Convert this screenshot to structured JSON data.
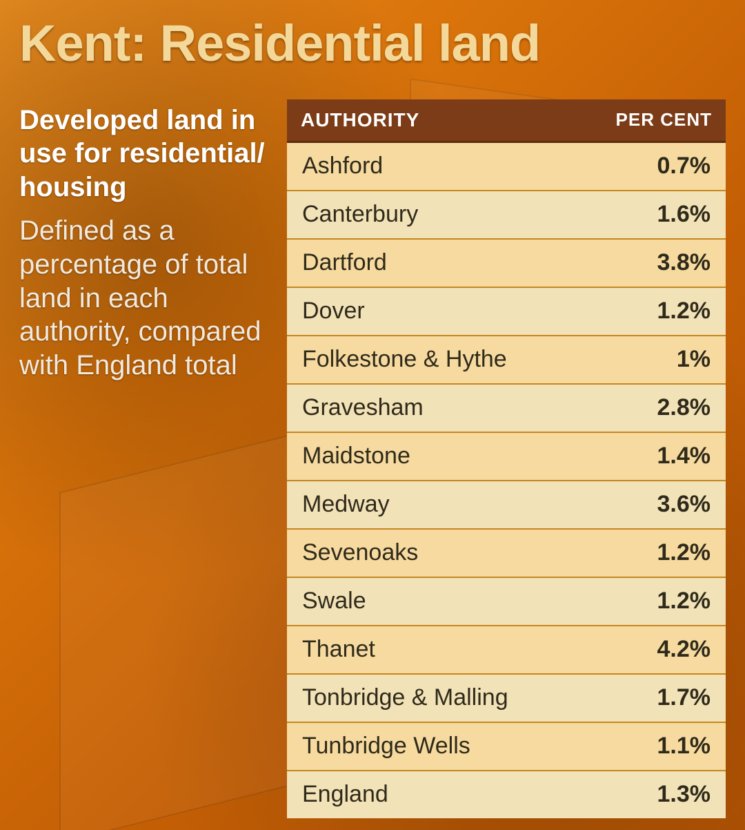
{
  "title_color": "#f4d89a",
  "title": "Kent: Residential land",
  "intro": {
    "lead": "Developed land in use for residential/ housing",
    "sub": "Defined as a percentage of total land in each authority, compared with England total"
  },
  "table": {
    "header_bg": "#7b3c17",
    "header_border": "#5e2c10",
    "row_bg_odd": "#f6daa0",
    "row_bg_even": "#f2e2b8",
    "row_border": "#c6861f",
    "text_color": "#2f2a1a",
    "columns": {
      "authority": "AUTHORITY",
      "percent": "PER CENT"
    },
    "rows": [
      {
        "authority": "Ashford",
        "percent": "0.7%"
      },
      {
        "authority": "Canterbury",
        "percent": "1.6%"
      },
      {
        "authority": "Dartford",
        "percent": "3.8%"
      },
      {
        "authority": "Dover",
        "percent": "1.2%"
      },
      {
        "authority": "Folkestone & Hythe",
        "percent": "1%"
      },
      {
        "authority": "Gravesham",
        "percent": "2.8%"
      },
      {
        "authority": "Maidstone",
        "percent": "1.4%"
      },
      {
        "authority": "Medway",
        "percent": "3.6%"
      },
      {
        "authority": "Sevenoaks",
        "percent": "1.2%"
      },
      {
        "authority": "Swale",
        "percent": "1.2%"
      },
      {
        "authority": "Thanet",
        "percent": "4.2%"
      },
      {
        "authority": "Tonbridge & Malling",
        "percent": "1.7%"
      },
      {
        "authority": "Tunbridge Wells",
        "percent": "1.1%"
      },
      {
        "authority": "England",
        "percent": "1.3%"
      }
    ]
  }
}
